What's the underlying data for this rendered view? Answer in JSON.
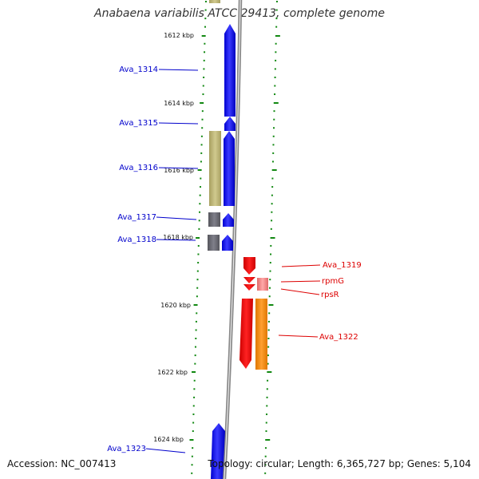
{
  "title": "Anabaena variabilis ATCC 29413, complete genome",
  "footer": {
    "accession": "Accession: NC_007413",
    "topology": "Topology: circular; Length: 6,365,727 bp; Genes: 5,104"
  },
  "kbp_labels": [
    "1612 kbp",
    "1614 kbp",
    "1616 kbp",
    "1618 kbp",
    "1620 kbp",
    "1622 kbp",
    "1624 kbp"
  ],
  "gene_labels": [
    {
      "text": "Ava_1314",
      "strand": "forward"
    },
    {
      "text": "Ava_1315",
      "strand": "forward"
    },
    {
      "text": "Ava_1316",
      "strand": "forward"
    },
    {
      "text": "Ava_1317",
      "strand": "forward"
    },
    {
      "text": "Ava_1318",
      "strand": "forward"
    },
    {
      "text": "Ava_1319",
      "strand": "reverse"
    },
    {
      "text": "rpmG",
      "strand": "reverse"
    },
    {
      "text": "rpsR",
      "strand": "reverse"
    },
    {
      "text": "Ava_1322",
      "strand": "reverse"
    },
    {
      "text": "Ava_1323",
      "strand": "forward"
    }
  ],
  "colors": {
    "forward_label": "#0000cc",
    "reverse_label": "#dd0000",
    "forward_cds": "#1a1aff",
    "reverse_cds": "#ee1111",
    "khaki_feature": "#bdb67a",
    "gray_feature": "#6a6a72",
    "pink_feature": "#f08080",
    "orange_feature": "#ff8c00",
    "tick": "#118811",
    "backbone": "#888888"
  }
}
